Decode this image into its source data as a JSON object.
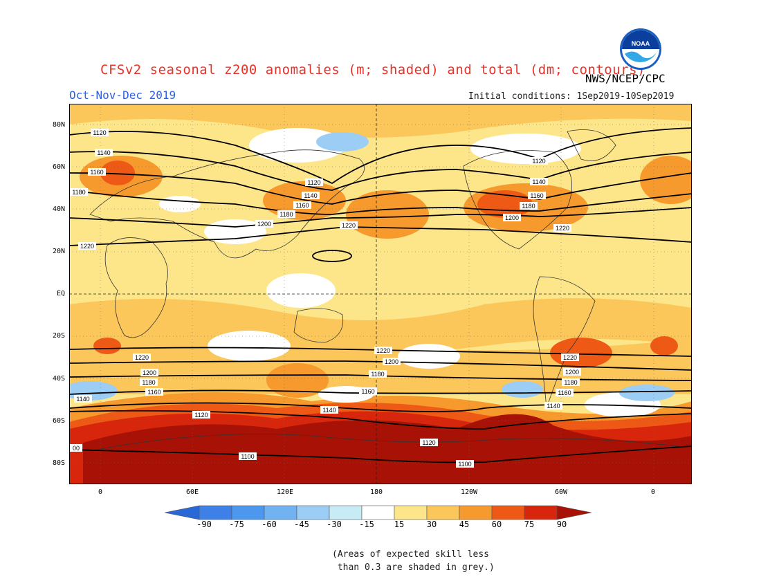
{
  "header": {
    "title": "CFSv2 seasonal z200 anomalies (m; shaded) and total (dm; contours)",
    "agency": "NWS/NCEP/CPC",
    "logo_text": "NOAA",
    "season": "Oct-Nov-Dec 2019",
    "initial_conditions": "Initial conditions: 1Sep2019-10Sep2019"
  },
  "axes": {
    "lat_labels": [
      "80N",
      "60N",
      "40N",
      "20N",
      "EQ",
      "20S",
      "40S",
      "60S",
      "80S"
    ],
    "lon_labels": [
      "0",
      "60E",
      "120E",
      "180",
      "120W",
      "60W",
      "0"
    ]
  },
  "contours": {
    "units": "dm",
    "labels": [
      "1120",
      "1140",
      "1160",
      "1180",
      "1200",
      "1220",
      "1120",
      "1140",
      "1160",
      "1180",
      "1200",
      "1220",
      "1120",
      "1140",
      "1160",
      "1180",
      "1200",
      "1220",
      "1220",
      "1200",
      "1180",
      "1160",
      "1140",
      "1120",
      "1100",
      "1220",
      "1200",
      "1180",
      "1160",
      "1140",
      "1120",
      "1100",
      "1220",
      "1200",
      "1180",
      "1160",
      "1140",
      "00"
    ]
  },
  "colorbar": {
    "labels": [
      "-90",
      "-75",
      "-60",
      "-45",
      "-30",
      "-15",
      "15",
      "30",
      "45",
      "60",
      "75",
      "90"
    ],
    "colors": [
      "#2a68d8",
      "#3d80e8",
      "#4b98ee",
      "#70b2f2",
      "#9ccef5",
      "#c8ecf6",
      "#ffffff",
      "#fde68a",
      "#fbc65a",
      "#f69a2e",
      "#ee5a16",
      "#d8260c",
      "#a81206"
    ]
  },
  "note": "(Areas of expected skill less\n than 0.3 are shaded in grey.)"
}
